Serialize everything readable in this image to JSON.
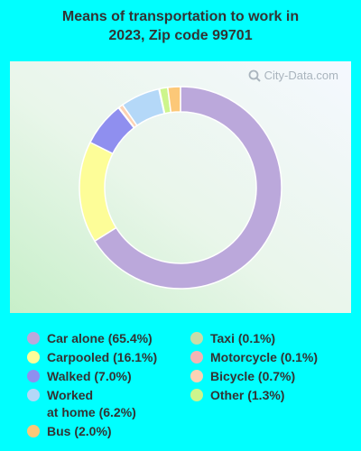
{
  "title_lines": [
    "Means of transportation to work in",
    "2023, Zip code 99701"
  ],
  "watermark": "City-Data.com",
  "chart_data": {
    "type": "pie",
    "donut": true,
    "title": "Means of transportation to work in 2023, Zip code 99701",
    "slices": [
      {
        "label": "Car alone",
        "value": 65.4,
        "color": "#bba8db"
      },
      {
        "label": "Carpooled",
        "value": 16.1,
        "color": "#fdfd98"
      },
      {
        "label": "Walked",
        "value": 7.0,
        "color": "#8f8fef"
      },
      {
        "label": "Motorcycle",
        "value": 0.1,
        "color": "#f2b4b4"
      },
      {
        "label": "Bicycle",
        "value": 0.7,
        "color": "#fcd2b4"
      },
      {
        "label": "Worked at home",
        "value": 6.2,
        "color": "#b4d8f8"
      },
      {
        "label": "Taxi",
        "value": 0.1,
        "color": "#c9dca8"
      },
      {
        "label": "Other",
        "value": 1.3,
        "color": "#cdf58c"
      },
      {
        "label": "Bus",
        "value": 2.0,
        "color": "#fcc878"
      }
    ]
  },
  "legend": {
    "left": [
      {
        "lines": [
          "Car alone (65.4%)"
        ],
        "color": "#bba8db"
      },
      {
        "lines": [
          "Carpooled (16.1%)"
        ],
        "color": "#fdfd98"
      },
      {
        "lines": [
          "Walked (7.0%)"
        ],
        "color": "#8f8fef"
      },
      {
        "lines": [
          "Worked",
          "at home (6.2%)"
        ],
        "color": "#b4d8f8"
      },
      {
        "lines": [
          "Bus (2.0%)"
        ],
        "color": "#fcc878"
      }
    ],
    "right": [
      {
        "lines": [
          "Taxi (0.1%)"
        ],
        "color": "#c9dca8"
      },
      {
        "lines": [
          "Motorcycle (0.1%)"
        ],
        "color": "#f2b4b4"
      },
      {
        "lines": [
          "Bicycle (0.7%)"
        ],
        "color": "#fcd2b4"
      },
      {
        "lines": [
          "Other (1.3%)"
        ],
        "color": "#cdf58c"
      }
    ]
  }
}
